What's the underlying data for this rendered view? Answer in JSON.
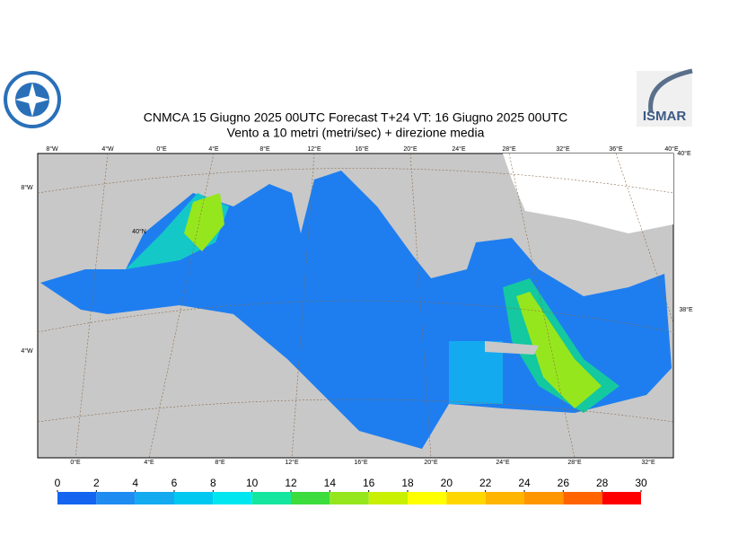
{
  "header": {
    "title": "CNMCA 15   Giugno  2025 00UTC Forecast T+24 VT: 16   Giugno  2025 00UTC",
    "subtitle": "Vento a 10 metri (metri/sec) + direzione media"
  },
  "logos": {
    "right": "ISMAR"
  },
  "map": {
    "top_labels": [
      "8°W",
      "4°W",
      "0°E",
      "4°E",
      "8°E",
      "12°E",
      "16°E",
      "20°E",
      "24°E",
      "28°E",
      "32°E",
      "36°E",
      "40°E"
    ],
    "bottom_labels": [
      "0°E",
      "4°E",
      "8°E",
      "12°E",
      "16°E",
      "20°E",
      "24°E",
      "28°E",
      "32°E"
    ],
    "left_labels": [
      "8°W",
      "4°W"
    ],
    "right_labels": [
      "40°E",
      "38°E"
    ],
    "inner_labels": [
      "40°N"
    ]
  },
  "colorbar": {
    "ticks": [
      0,
      2,
      4,
      6,
      8,
      10,
      12,
      14,
      16,
      18,
      20,
      22,
      24,
      26,
      28,
      30
    ],
    "colors": [
      "#1464f0",
      "#1e8cf0",
      "#14aaf0",
      "#00c8f0",
      "#00e6f0",
      "#14e6a0",
      "#3cdc3c",
      "#96e61e",
      "#c8f000",
      "#ffff00",
      "#ffd700",
      "#ffb400",
      "#ff9600",
      "#ff6400",
      "#ff0000",
      "#ff1496"
    ]
  }
}
